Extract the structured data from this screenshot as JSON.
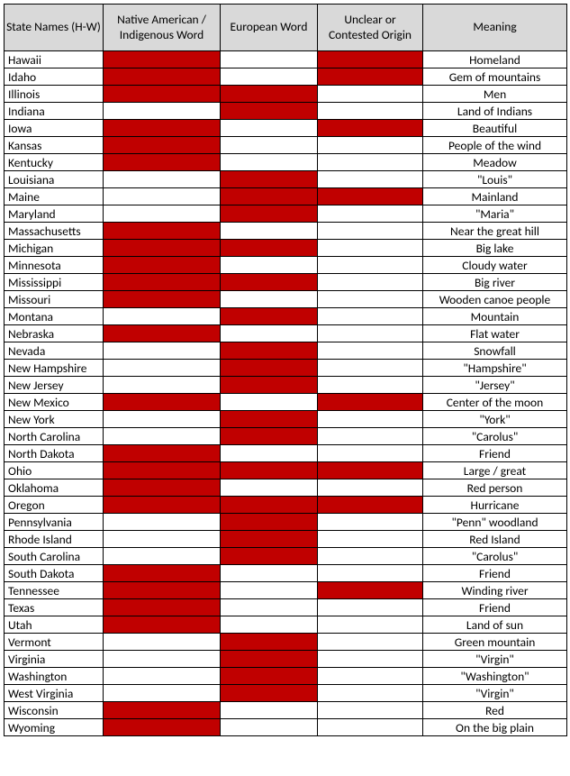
{
  "table": {
    "header_bg": "#d9d9d9",
    "fill_color": "#c00000",
    "border_color": "#000000",
    "font_size": 13.5,
    "columns": [
      {
        "label": "State Names (H-W)",
        "width": 110
      },
      {
        "label": "Native American / Indigenous Word",
        "width": 130
      },
      {
        "label": "European Word",
        "width": 108
      },
      {
        "label": "Unclear or Contested Origin",
        "width": 117
      },
      {
        "label": "Meaning",
        "width": 160
      }
    ],
    "rows": [
      {
        "state": "Hawaii",
        "native": true,
        "european": false,
        "contested": true,
        "meaning": "Homeland"
      },
      {
        "state": "Idaho",
        "native": true,
        "european": false,
        "contested": true,
        "meaning": "Gem of mountains"
      },
      {
        "state": "Illinois",
        "native": true,
        "european": true,
        "contested": false,
        "meaning": "Men"
      },
      {
        "state": "Indiana",
        "native": false,
        "european": true,
        "contested": false,
        "meaning": "Land of Indians"
      },
      {
        "state": "Iowa",
        "native": true,
        "european": false,
        "contested": true,
        "meaning": "Beautiful"
      },
      {
        "state": "Kansas",
        "native": true,
        "european": false,
        "contested": false,
        "meaning": "People of the wind"
      },
      {
        "state": "Kentucky",
        "native": true,
        "european": false,
        "contested": false,
        "meaning": "Meadow"
      },
      {
        "state": "Louisiana",
        "native": false,
        "european": true,
        "contested": false,
        "meaning": "\"Louis\""
      },
      {
        "state": "Maine",
        "native": false,
        "european": true,
        "contested": true,
        "meaning": "Mainland"
      },
      {
        "state": "Maryland",
        "native": false,
        "european": true,
        "contested": false,
        "meaning": "\"Maria\""
      },
      {
        "state": "Massachusetts",
        "native": true,
        "european": false,
        "contested": false,
        "meaning": "Near the great hill"
      },
      {
        "state": "Michigan",
        "native": true,
        "european": true,
        "contested": false,
        "meaning": "Big lake"
      },
      {
        "state": "Minnesota",
        "native": true,
        "european": false,
        "contested": false,
        "meaning": "Cloudy water"
      },
      {
        "state": "Mississippi",
        "native": true,
        "european": true,
        "contested": false,
        "meaning": "Big river"
      },
      {
        "state": "Missouri",
        "native": true,
        "european": false,
        "contested": false,
        "meaning": "Wooden canoe people"
      },
      {
        "state": "Montana",
        "native": false,
        "european": true,
        "contested": false,
        "meaning": "Mountain"
      },
      {
        "state": "Nebraska",
        "native": true,
        "european": false,
        "contested": false,
        "meaning": "Flat water"
      },
      {
        "state": "Nevada",
        "native": false,
        "european": true,
        "contested": false,
        "meaning": "Snowfall"
      },
      {
        "state": "New Hampshire",
        "native": false,
        "european": true,
        "contested": false,
        "meaning": "\"Hampshire\""
      },
      {
        "state": "New Jersey",
        "native": false,
        "european": true,
        "contested": false,
        "meaning": "\"Jersey\""
      },
      {
        "state": "New Mexico",
        "native": true,
        "european": false,
        "contested": true,
        "meaning": "Center of the moon"
      },
      {
        "state": "New York",
        "native": false,
        "european": true,
        "contested": false,
        "meaning": "\"York\""
      },
      {
        "state": "North Carolina",
        "native": false,
        "european": true,
        "contested": false,
        "meaning": "\"Carolus\""
      },
      {
        "state": "North Dakota",
        "native": true,
        "european": false,
        "contested": false,
        "meaning": "Friend"
      },
      {
        "state": "Ohio",
        "native": true,
        "european": true,
        "contested": true,
        "meaning": "Large / great"
      },
      {
        "state": "Oklahoma",
        "native": true,
        "european": false,
        "contested": false,
        "meaning": "Red person"
      },
      {
        "state": "Oregon",
        "native": true,
        "european": true,
        "contested": true,
        "meaning": "Hurricane"
      },
      {
        "state": "Pennsylvania",
        "native": false,
        "european": true,
        "contested": false,
        "meaning": "\"Penn\" woodland"
      },
      {
        "state": "Rhode Island",
        "native": false,
        "european": true,
        "contested": false,
        "meaning": "Red Island"
      },
      {
        "state": "South Carolina",
        "native": false,
        "european": true,
        "contested": false,
        "meaning": "\"Carolus\""
      },
      {
        "state": "South Dakota",
        "native": true,
        "european": false,
        "contested": false,
        "meaning": "Friend"
      },
      {
        "state": "Tennessee",
        "native": true,
        "european": false,
        "contested": true,
        "meaning": "Winding river"
      },
      {
        "state": "Texas",
        "native": true,
        "european": false,
        "contested": false,
        "meaning": "Friend"
      },
      {
        "state": "Utah",
        "native": true,
        "european": false,
        "contested": false,
        "meaning": "Land of sun"
      },
      {
        "state": "Vermont",
        "native": false,
        "european": true,
        "contested": false,
        "meaning": "Green mountain"
      },
      {
        "state": "Virginia",
        "native": false,
        "european": true,
        "contested": false,
        "meaning": "\"Virgin\""
      },
      {
        "state": "Washington",
        "native": false,
        "european": true,
        "contested": false,
        "meaning": "\"Washington\""
      },
      {
        "state": "West Virginia",
        "native": false,
        "european": true,
        "contested": false,
        "meaning": "\"Virgin\""
      },
      {
        "state": "Wisconsin",
        "native": true,
        "european": false,
        "contested": false,
        "meaning": "Red"
      },
      {
        "state": "Wyoming",
        "native": true,
        "european": false,
        "contested": false,
        "meaning": "On the big plain"
      }
    ]
  }
}
